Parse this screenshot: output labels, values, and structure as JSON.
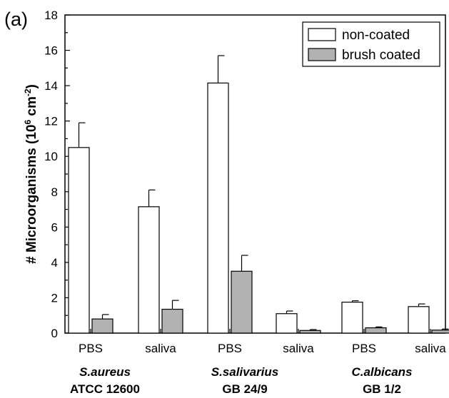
{
  "panel_label": "(a)",
  "chart_data": {
    "type": "bar",
    "title": "",
    "xlabel": "",
    "ylabel": "# Microorganisms (10",
    "ylabel_exponent": "6",
    "ylabel_unit": " cm",
    "ylabel_unit_exponent": "-2",
    "ylabel_close": ")",
    "ylim": [
      0,
      18
    ],
    "yticks": [
      0,
      2,
      4,
      6,
      8,
      10,
      12,
      14,
      16,
      18
    ],
    "categories": [
      "PBS",
      "saliva",
      "PBS",
      "saliva",
      "PBS",
      "saliva"
    ],
    "groups": [
      {
        "species": "S.aureus",
        "strain": "ATCC 12600"
      },
      {
        "species": "S.salivarius",
        "strain": "GB 24/9"
      },
      {
        "species": "C.albicans",
        "strain": "GB 1/2"
      }
    ],
    "series": [
      {
        "name": "non-coated",
        "color": "#ffffff",
        "values": [
          10.5,
          7.15,
          14.15,
          1.1,
          1.75,
          1.5
        ],
        "errors": [
          1.4,
          0.95,
          1.55,
          0.15,
          0.08,
          0.15
        ]
      },
      {
        "name": "brush coated",
        "color": "#b2b2b2",
        "values": [
          0.8,
          1.35,
          3.5,
          0.15,
          0.3,
          0.17
        ],
        "errors": [
          0.25,
          0.5,
          0.9,
          0.05,
          0.05,
          0.06
        ]
      }
    ],
    "legend_position": "top-right",
    "grid": false
  }
}
